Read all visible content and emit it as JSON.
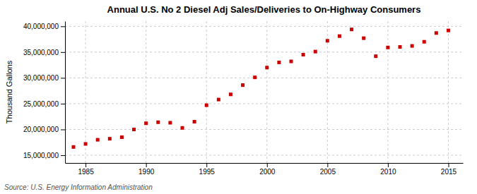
{
  "chart_data": {
    "type": "scatter",
    "title": "Annual U.S. No 2 Diesel Adj Sales/Deliveries to On-Highway Consumers",
    "y_label": "Thousand Gallons",
    "source": "Source: U.S. Energy Information Administration",
    "color": "#CC0000",
    "marker": "square",
    "grid": true,
    "x": [
      1984,
      1985,
      1986,
      1987,
      1988,
      1989,
      1990,
      1991,
      1992,
      1993,
      1994,
      1995,
      1996,
      1997,
      1998,
      1999,
      2000,
      2001,
      2002,
      2003,
      2004,
      2005,
      2006,
      2007,
      2008,
      2009,
      2010,
      2011,
      2012,
      2013,
      2014,
      2015
    ],
    "values": [
      16600000,
      17200000,
      18000000,
      18200000,
      18500000,
      20000000,
      21200000,
      21400000,
      21300000,
      20300000,
      21500000,
      24700000,
      25800000,
      26800000,
      28600000,
      30100000,
      32000000,
      33000000,
      33200000,
      34500000,
      35100000,
      37200000,
      38100000,
      39400000,
      37700000,
      34200000,
      35900000,
      36000000,
      36200000,
      37000000,
      38700000,
      39200000
    ],
    "xlim": [
      1983.3,
      2016.2
    ],
    "xticks": [
      1985,
      1990,
      1995,
      2000,
      2005,
      2010,
      2015
    ],
    "ylim": [
      13500000,
      41000000
    ],
    "yticks": [
      {
        "value": 15000000,
        "label": "15,000,000"
      },
      {
        "value": 20000000,
        "label": "20,000,000"
      },
      {
        "value": 25000000,
        "label": "25,000,000"
      },
      {
        "value": 30000000,
        "label": "30,000,000"
      },
      {
        "value": 35000000,
        "label": "35,000,000"
      },
      {
        "value": 40000000,
        "label": "40,000,000"
      }
    ]
  }
}
